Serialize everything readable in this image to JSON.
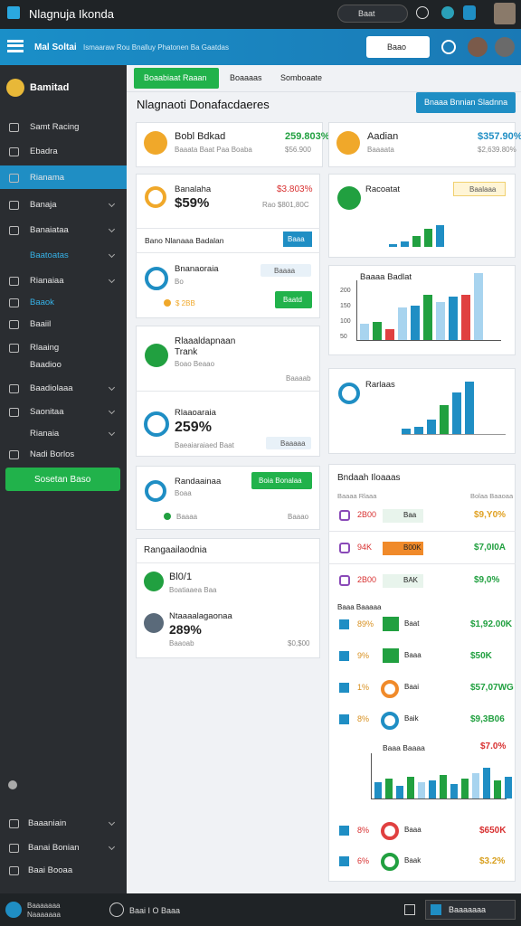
{
  "topbar": {
    "title": "Nlagnuja Ikonda",
    "search": "Baat"
  },
  "header": {
    "brand": "Mal Soltai",
    "subtitle": "Ismaaraw Rou Bnalluy Phatonen Ba Gaatdas",
    "search": "Baao"
  },
  "sidebar": {
    "profile": "Bamitad",
    "items": [
      "Samt Racing",
      "Ebadra",
      "Rianama",
      "Banaja",
      "Banaiataa",
      "Baatoatas",
      "Rianaiaa",
      "Baaok",
      "Baaiil",
      "Rlaaing",
      "Baadioo",
      "Baadiolaaa",
      "Saonitaa",
      "Rianaia",
      "Nadi Borlos"
    ],
    "button": "Sosetan Baso",
    "footer": [
      "Baaaniain",
      "Banai Bonian",
      "Baai Booaa"
    ]
  },
  "tabs": [
    "Boaabiaat Raaan",
    "Boaaaas",
    "Somboaate"
  ],
  "page_title": "Nlagnaoti Donafacdaeres",
  "action_button": "Bnaaa Bnnian Sladnna",
  "kpis": [
    {
      "label": "Bobl Bdkad",
      "value": "259.803%",
      "sub": "Baaata Baat Paa Boaba",
      "sub2": "$56.900"
    },
    {
      "label": "Aadian",
      "value": "$357.90%",
      "sub": "Baaaata",
      "sub2": "$2,639.80%"
    }
  ],
  "left_cards": {
    "card1": {
      "title": "Banalaha",
      "value": "$59%",
      "delta": "$3.803%",
      "note": "Rao $801,80C",
      "row": "Bano Nlanaaa Badalan",
      "row_button": "Baaa",
      "title2": "Bnanaoraia",
      "sub2": "Bo",
      "pct2": "$ 2BB",
      "chip2": "Baaaa",
      "button2": "Baatd"
    },
    "card2": {
      "title": "Rlaaaldapnaan Trank",
      "sub": "Boao Beaao",
      "right": "Baaaab",
      "title2": "Rlaaoaraia",
      "value2": "259%",
      "sub2": "Baeaiaraiaed Baat",
      "chip2": "Baaaaa"
    },
    "card3": {
      "title": "Randaainaa",
      "button": "Boia Bonalaa",
      "sub": "Boaa",
      "foot": "Baaaa",
      "right": "Baaao"
    },
    "card4": {
      "title": "Rangaailaodnia",
      "row1": "Bl0/1",
      "row1_sub": "Boatiaaea Baa",
      "row2": "Ntaaaalagaonaa",
      "row2_value": "289%",
      "row2_sub": "Baaoab",
      "row2_right": "$0,$00"
    }
  },
  "right_cards": {
    "cardA": {
      "title": "Racoatat",
      "chip": "Baalaaa"
    },
    "cardB": {
      "title": "Baaaa Badlat",
      "yticks": [
        "200",
        "150",
        "100",
        "50"
      ]
    },
    "cardC": {
      "title": "Rarlaas"
    },
    "table": {
      "title": "Bndaah Iloaaas",
      "head_left": "Baaaa Rlaaa",
      "head_right": "Bolaa Baaoaa",
      "rows": [
        {
          "pct": "2B00",
          "badge": "Baa",
          "value": "$9,Y0%"
        },
        {
          "pct": "94K",
          "badge": "B00K",
          "value": "$7,0I0A"
        },
        {
          "pct": "2B00",
          "badge": "BAK",
          "value": "$9,0%"
        }
      ],
      "section": "Baaa Baaaaa",
      "rows2": [
        {
          "pct": "89%",
          "badge": "Baat",
          "value": "$1,92.00K"
        },
        {
          "pct": "9%",
          "badge": "Baaa",
          "value": "$50K"
        },
        {
          "pct": "1%",
          "badge": "Baai",
          "value": "$57,07WG"
        },
        {
          "pct": "8%",
          "badge": "Baik",
          "value": "$9,3B06"
        }
      ],
      "chart_title": "Baaa Baaaa",
      "chart_value": "$7.0%",
      "rows3": [
        {
          "pct": "8%",
          "badge": "Baaa",
          "value": "$650K"
        },
        {
          "pct": "6%",
          "badge": "Baak",
          "value": "$3.2%"
        }
      ]
    }
  },
  "bottombar": {
    "left": "Baaaaaaa Naaaaaaa",
    "center": "Baai I O Baaa",
    "right": "Baaaaaaa"
  }
}
